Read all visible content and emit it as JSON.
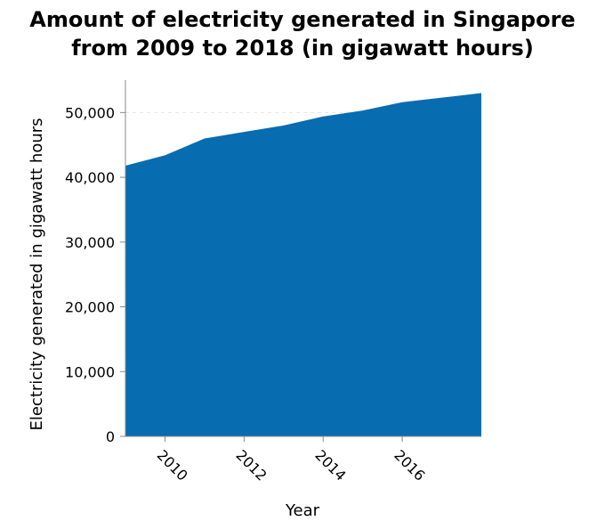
{
  "chart_data": {
    "type": "area",
    "title_line1": "Amount of electricity generated in Singapore",
    "title_line2": "from 2009 to 2018 (in gigawatt hours)",
    "xlabel": "Year",
    "ylabel": "Electricity generated in gigawatt hours",
    "xlim": [
      2009,
      2018
    ],
    "ylim": [
      0,
      55000
    ],
    "x_ticks": [
      2010,
      2012,
      2014,
      2016
    ],
    "x_tick_labels": [
      "2010",
      "2012",
      "2014",
      "2016"
    ],
    "y_ticks": [
      0,
      10000,
      20000,
      30000,
      40000,
      50000
    ],
    "y_tick_labels": [
      "0",
      "10,000",
      "20,000",
      "30,000",
      "40,000",
      "50,000"
    ],
    "grid": "horizontal dashed",
    "area_color": "#086cb0",
    "series": [
      {
        "x": [
          2009,
          2010,
          2011,
          2012,
          2013,
          2014,
          2015,
          2016,
          2017,
          2018
        ],
        "values": [
          41800,
          43400,
          46000,
          47000,
          48000,
          49400,
          50300,
          51600,
          52300,
          53000
        ]
      }
    ]
  }
}
